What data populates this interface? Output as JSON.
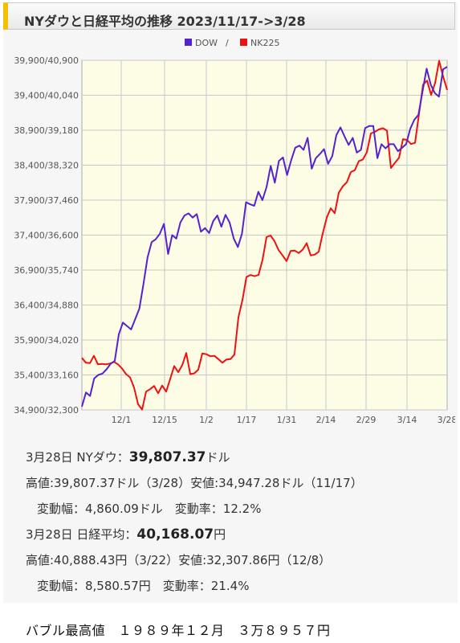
{
  "title": "NYダウと日経平均の推移 2023/11/17->3/28",
  "colors": {
    "dow": "#5522cc",
    "nk": "#ee1111",
    "plot_bg": "#fdfde6",
    "grid": "#c8c8c8"
  },
  "chart_data": {
    "type": "line",
    "legend": [
      "DOW",
      "/",
      "NK225"
    ],
    "legend_placement": "top-center",
    "y_tick_labels": [
      "39,900/40,900",
      "39,400/40,040",
      "38,900/39,180",
      "38,400/38,320",
      "37,900/37,460",
      "37,400/36,600",
      "36,900/35,740",
      "36,400/34,880",
      "35,900/34,020",
      "35,400/33,160",
      "34,900/32,300"
    ],
    "x_tick_labels": [
      "12/1",
      "12/15",
      "1/2",
      "1/17",
      "1/31",
      "2/14",
      "2/29",
      "3/14",
      "3/28"
    ],
    "grid": true,
    "dow_ylim": [
      34900,
      39900
    ],
    "nk_ylim": [
      32300,
      40900
    ],
    "series": [
      {
        "name": "DOW",
        "values": [
          34947,
          35150,
          35100,
          35350,
          35400,
          35420,
          35480,
          35560,
          35600,
          35980,
          36150,
          36100,
          36050,
          36200,
          36350,
          36700,
          37080,
          37300,
          37340,
          37420,
          37560,
          37130,
          37400,
          37350,
          37580,
          37680,
          37710,
          37650,
          37700,
          37450,
          37500,
          37430,
          37600,
          37680,
          37520,
          37690,
          37580,
          37350,
          37230,
          37420,
          37870,
          37840,
          37820,
          38020,
          37900,
          38090,
          38390,
          38150,
          38460,
          38510,
          38260,
          38470,
          38650,
          38680,
          38620,
          38790,
          38350,
          38500,
          38560,
          38630,
          38420,
          38530,
          38830,
          38940,
          38810,
          38690,
          38790,
          38580,
          38620,
          38930,
          38960,
          38960,
          38500,
          38700,
          38640,
          38700,
          38700,
          38600,
          38650,
          38700,
          38920,
          39050,
          39120,
          39450,
          39780,
          39550,
          39430,
          39380,
          39770,
          39807
        ]
      },
      {
        "name": "NK225",
        "values": [
          33580,
          33460,
          33450,
          33630,
          33420,
          33430,
          33420,
          33440,
          33480,
          33420,
          33320,
          33180,
          33100,
          32850,
          32440,
          32308,
          32750,
          32810,
          32890,
          32710,
          32900,
          32750,
          33060,
          33380,
          33230,
          33400,
          33700,
          33180,
          33200,
          33290,
          33690,
          33670,
          33620,
          33630,
          33550,
          33460,
          33540,
          33550,
          33660,
          34580,
          35000,
          35570,
          35620,
          35590,
          35620,
          35990,
          36550,
          36590,
          36450,
          36230,
          36100,
          35960,
          36210,
          36220,
          36160,
          36240,
          36400,
          36100,
          36120,
          36190,
          36640,
          37030,
          37260,
          37140,
          37640,
          37800,
          37900,
          38150,
          38200,
          38420,
          38460,
          38640,
          39100,
          39140,
          39200,
          39230,
          39170,
          38250,
          38380,
          38500,
          38960,
          38940,
          38840,
          38870,
          39590,
          40300,
          40400,
          40050,
          40340,
          40888,
          40500,
          40168
        ]
      }
    ]
  },
  "info": {
    "dow_date_label": "3月28日 NYダウ：",
    "dow_close": "39,807.37",
    "dow_unit": "ドル",
    "dow_high_low": "高値:39,807.37ドル（3/28）安値:34,947.28ドル（11/17）",
    "dow_change": "変動幅：4,860.09ドル　変動率：12.2%",
    "nk_date_label": "3月28日 日経平均：",
    "nk_close": "40,168.07",
    "nk_unit": "円",
    "nk_high_low": "高値:40,888.43円（3/22）安値:32,307.86円（12/8）",
    "nk_change": "変動幅：8,580.57円　変動率：21.4%"
  },
  "footer": "バブル最高値　１９８９年１２月　３万８９５７円"
}
